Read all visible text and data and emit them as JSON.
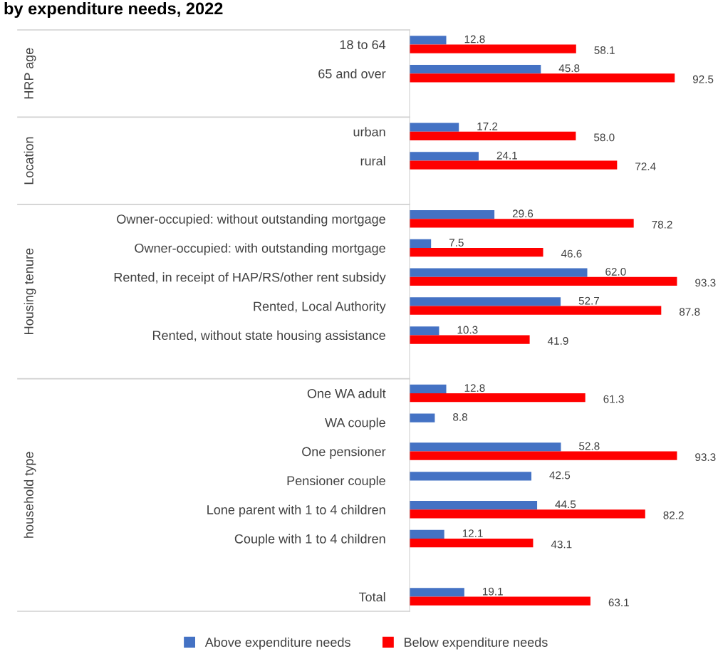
{
  "chart_data": {
    "type": "bar",
    "orientation": "horizontal",
    "title": "by expenditure needs, 2022",
    "categories": [
      "18 to 64",
      "65 and over",
      null,
      "urban",
      "rural",
      null,
      "Owner-occupied: without outstanding mortgage",
      "Owner-occupied: with outstanding mortgage",
      "Rented, in receipt of HAP/RS/other rent subsidy",
      "Rented, Local Authority",
      "Rented, without state housing assistance",
      null,
      "One WA adult",
      "WA couple",
      "One pensioner",
      "Pensioner couple",
      "Lone parent with 1 to 4 children",
      "Couple with 1 to 4 children",
      null,
      "Total"
    ],
    "series": [
      {
        "name": "Above expenditure needs",
        "color": "#4472c4",
        "values": [
          12.8,
          45.8,
          null,
          17.2,
          24.1,
          null,
          29.6,
          7.5,
          62.0,
          52.7,
          10.3,
          null,
          12.8,
          8.8,
          52.8,
          42.5,
          44.5,
          12.1,
          null,
          19.1
        ],
        "value_labels": [
          "12.8",
          "45.8",
          null,
          "17.2",
          "24.1",
          null,
          "29.6",
          "7.5",
          "62.0",
          "52.7",
          "10.3",
          null,
          "12.8",
          "8.8",
          "52.8",
          "42.5",
          "44.5",
          "12.1",
          null,
          "19.1"
        ]
      },
      {
        "name": "Below expenditure needs",
        "color": "#ff0000",
        "values": [
          58.1,
          92.5,
          null,
          58.0,
          72.4,
          null,
          78.2,
          46.6,
          93.3,
          87.8,
          41.9,
          null,
          61.3,
          null,
          93.3,
          null,
          82.2,
          43.1,
          null,
          63.1
        ],
        "value_labels": [
          "58.1",
          "92.5",
          null,
          "58.0",
          "72.4",
          null,
          "78.2",
          "46.6",
          "93.3",
          "87.8",
          "41.9",
          null,
          "61.3",
          null,
          "93.3",
          null,
          "82.2",
          "43.1",
          null,
          "63.1"
        ]
      }
    ],
    "annotations": [
      "HRP age",
      "Location",
      "Housing tenure",
      "household type"
    ],
    "legend": "bottom",
    "grid": false
  }
}
